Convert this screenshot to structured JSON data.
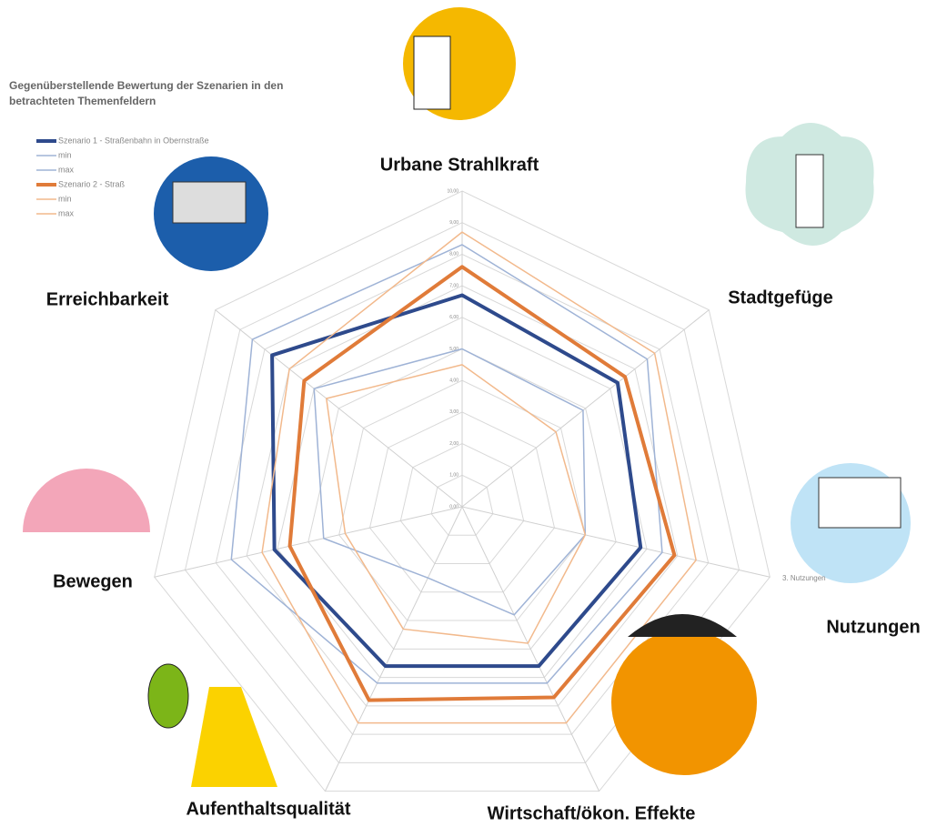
{
  "chart_data": {
    "type": "radar",
    "title": "Gegenüberstellende Bewertung der Szenarien in den betrachteten Themenfeldern",
    "categories": [
      "Urbane Strahlkraft",
      "Stadtgefüge",
      "Nutzungen",
      "Wirtschaft/ökon. Effekte",
      "Aufenthaltsqualität",
      "Bewegen",
      "Erreichbarkeit"
    ],
    "ylim": [
      0,
      10
    ],
    "yticks": [
      {
        "value": 0,
        "label": "0,00"
      },
      {
        "value": 1,
        "label": "1,00"
      },
      {
        "value": 2,
        "label": "2,00"
      },
      {
        "value": 3,
        "label": "3,00"
      },
      {
        "value": 4,
        "label": "4,00"
      },
      {
        "value": 5,
        "label": "5,00"
      },
      {
        "value": 6,
        "label": "6,00"
      },
      {
        "value": 7,
        "label": "7,00"
      },
      {
        "value": 8,
        "label": "8,00"
      },
      {
        "value": 9,
        "label": "9,00"
      },
      {
        "value": 10,
        "label": "10,00"
      }
    ],
    "grid": true,
    "series": [
      {
        "name": "Szenario 1 - Straßenbahn in Obernstraße",
        "color": "#2e4a8c",
        "width": 4,
        "values": [
          6.7,
          6.3,
          5.8,
          5.6,
          5.6,
          6.1,
          7.7
        ]
      },
      {
        "name": "min",
        "color": "#9fb3d6",
        "width": 1.5,
        "values": [
          5.0,
          4.9,
          4.0,
          3.8,
          2.5,
          4.5,
          6.0
        ]
      },
      {
        "name": "max",
        "color": "#9fb3d6",
        "width": 1.5,
        "values": [
          8.3,
          7.5,
          6.5,
          6.2,
          6.2,
          7.5,
          8.5
        ]
      },
      {
        "name": "Szenario 2 - Straß",
        "color": "#e07b39",
        "width": 4,
        "values": [
          7.6,
          6.6,
          6.9,
          6.7,
          6.8,
          5.6,
          6.4
        ]
      },
      {
        "name": "min",
        "color": "#f2b98c",
        "width": 1.5,
        "values": [
          4.5,
          3.8,
          4.0,
          4.8,
          4.3,
          3.8,
          5.5
        ]
      },
      {
        "name": "max",
        "color": "#f2b98c",
        "width": 1.5,
        "values": [
          8.7,
          7.8,
          7.6,
          7.6,
          7.6,
          6.5,
          7.0
        ]
      }
    ],
    "annotations": [
      "3. Nutzungen"
    ]
  }
}
